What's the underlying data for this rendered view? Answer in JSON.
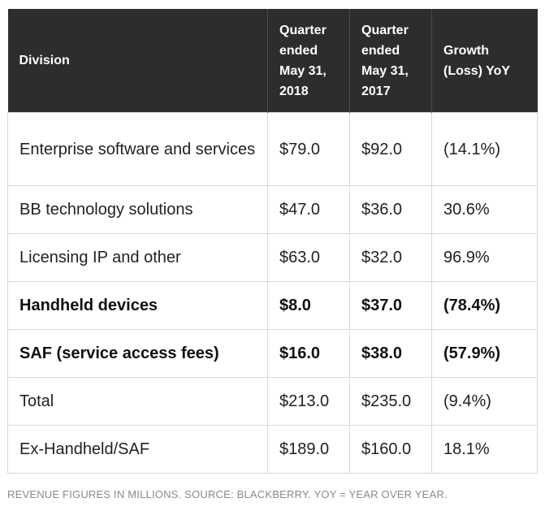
{
  "table": {
    "headers": [
      "Division",
      "Quarter ended May 31, 2018",
      "Quarter ended May 31, 2017",
      "Growth (Loss) YoY"
    ],
    "rows": [
      [
        "Enterprise software and services",
        "$79.0",
        "$92.0",
        "(14.1%)"
      ],
      [
        "BB technology solutions",
        "$47.0",
        "$36.0",
        "30.6%"
      ],
      [
        "Licensing IP and other",
        "$63.0",
        "$32.0",
        "96.9%"
      ],
      [
        "Handheld devices",
        "$8.0",
        "$37.0",
        "(78.4%)"
      ],
      [
        "SAF (service access fees)",
        "$16.0",
        "$38.0",
        "(57.9%)"
      ],
      [
        "Total",
        "$213.0",
        "$235.0",
        "(9.4%)"
      ],
      [
        "Ex-Handheld/SAF",
        "$189.0",
        "$160.0",
        "18.1%"
      ]
    ]
  },
  "caption": "REVENUE FIGURES IN MILLIONS. SOURCE: BLACKBERRY. YOY = YEAR OVER YEAR."
}
